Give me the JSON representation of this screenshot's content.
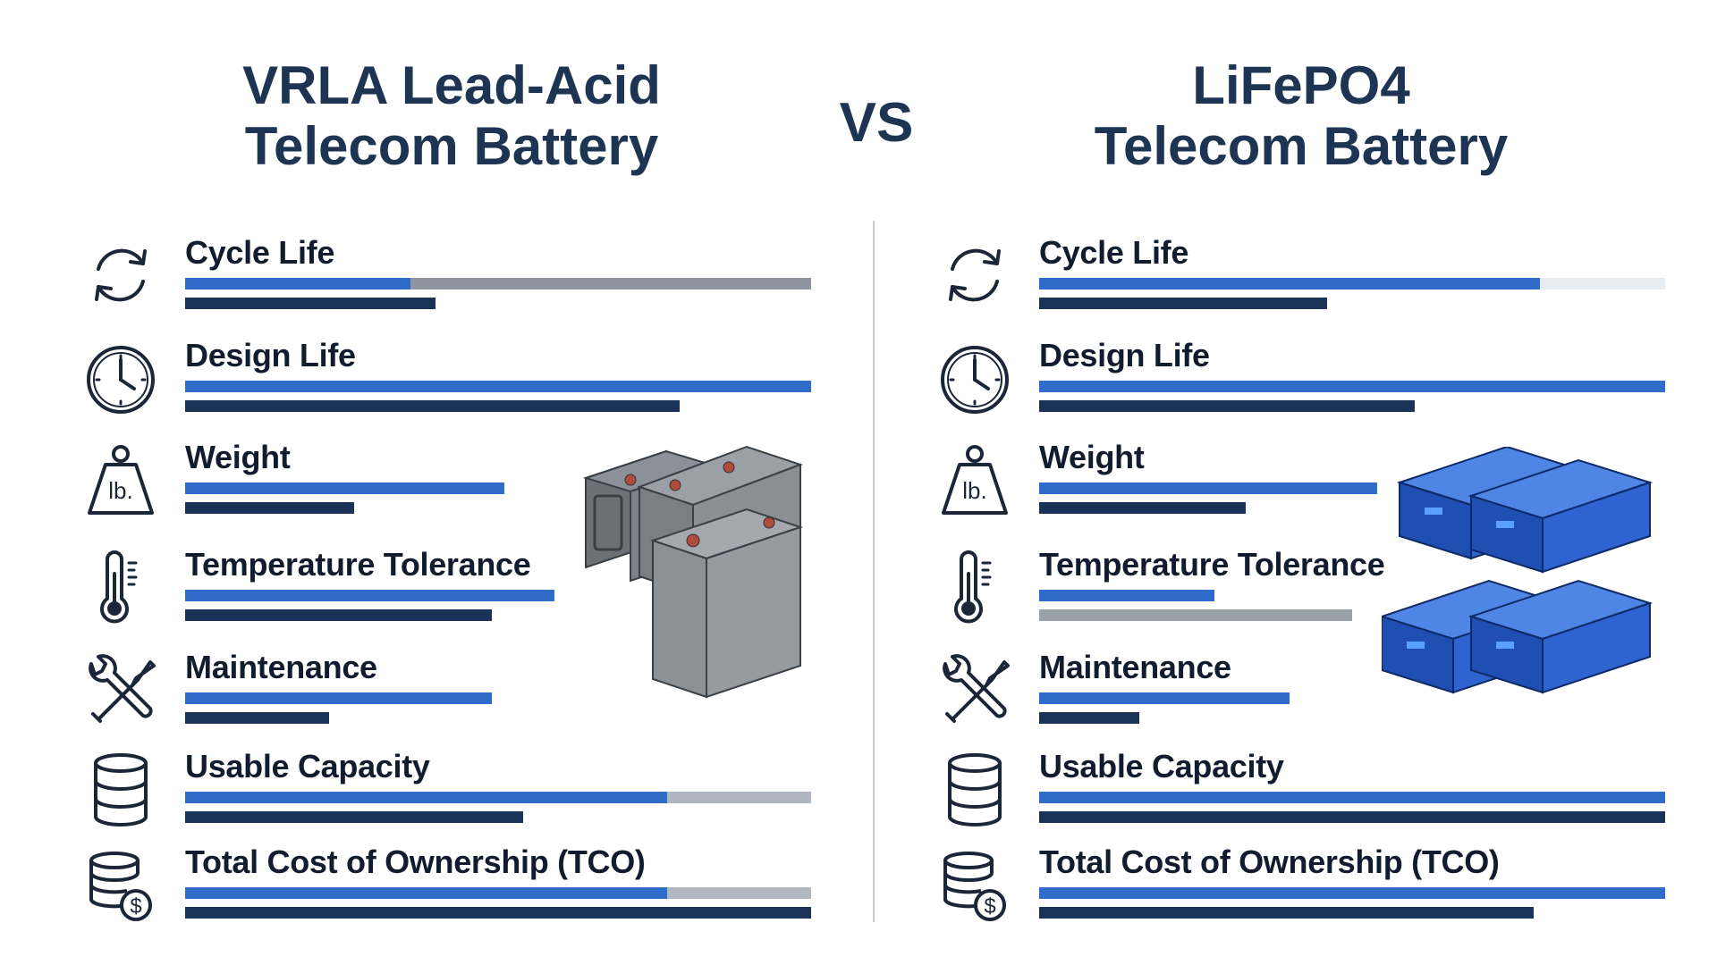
{
  "header": {
    "left_title_line1": "VRLA Lead-Acid",
    "left_title_line2": "Telecom Battery",
    "vs": "VS",
    "right_title_line1": "LiFePO4",
    "right_title_line2": "Telecom Battery"
  },
  "colors": {
    "primary_bar": "#2f6cc9",
    "secondary_bar": "#1b3356",
    "remainder_gray": "#8f959e",
    "title": "#1d3553"
  },
  "left": {
    "rows": [
      {
        "label": "Cycle Life",
        "icon": "cycle-arrows-icon",
        "top_bar": 0.36,
        "top_remainder": "gray",
        "bottom_bar": 0.4
      },
      {
        "label": "Design Life",
        "icon": "clock-icon",
        "top_bar": 1.0,
        "top_remainder": "none",
        "bottom_bar": 0.79
      },
      {
        "label": "Weight",
        "icon": "weight-lb-icon",
        "top_bar": 0.51,
        "top_remainder": "none",
        "bottom_bar": 0.27
      },
      {
        "label": "Temperature Tolerance",
        "icon": "thermometer-icon",
        "top_bar": 0.59,
        "top_remainder": "none",
        "bottom_bar": 0.49
      },
      {
        "label": "Maintenance",
        "icon": "wrench-screwdriver-icon",
        "top_bar": 0.49,
        "top_remainder": "none",
        "bottom_bar": 0.23
      },
      {
        "label": "Usable Capacity",
        "icon": "database-icon",
        "top_bar": 0.77,
        "top_remainder": "mid",
        "bottom_bar": 0.54
      },
      {
        "label": "Total Cost of Ownership (TCO)",
        "icon": "coins-dollar-icon",
        "top_bar": 0.77,
        "top_remainder": "mid",
        "bottom_bar": 1.0
      }
    ]
  },
  "right": {
    "rows": [
      {
        "label": "Cycle Life",
        "icon": "cycle-arrows-icon",
        "top_bar": 0.8,
        "top_remainder": "light",
        "bottom_bar": 0.46
      },
      {
        "label": "Design Life",
        "icon": "clock-icon",
        "top_bar": 1.0,
        "top_remainder": "none",
        "bottom_bar": 0.6
      },
      {
        "label": "Weight",
        "icon": "weight-lb-icon",
        "top_bar": 0.54,
        "top_remainder": "none",
        "bottom_bar": 0.33
      },
      {
        "label": "Temperature Tolerance",
        "icon": "thermometer-icon",
        "top_bar": 0.28,
        "top_remainder": "none",
        "bottom_bar": 0.5,
        "bottom_color": "gray"
      },
      {
        "label": "Maintenance",
        "icon": "wrench-screwdriver-icon",
        "top_bar": 0.4,
        "top_remainder": "none",
        "bottom_bar": 0.16
      },
      {
        "label": "Usable Capacity",
        "icon": "database-icon",
        "top_bar": 1.0,
        "top_remainder": "none",
        "bottom_bar": 1.0
      },
      {
        "label": "Total Cost of Ownership (TCO)",
        "icon": "coins-dollar-icon",
        "top_bar": 1.0,
        "top_remainder": "none",
        "bottom_bar": 0.79
      }
    ]
  },
  "images": {
    "left": "vrla-batteries-illustration",
    "right": "lifepo4-rack-batteries-illustration"
  }
}
